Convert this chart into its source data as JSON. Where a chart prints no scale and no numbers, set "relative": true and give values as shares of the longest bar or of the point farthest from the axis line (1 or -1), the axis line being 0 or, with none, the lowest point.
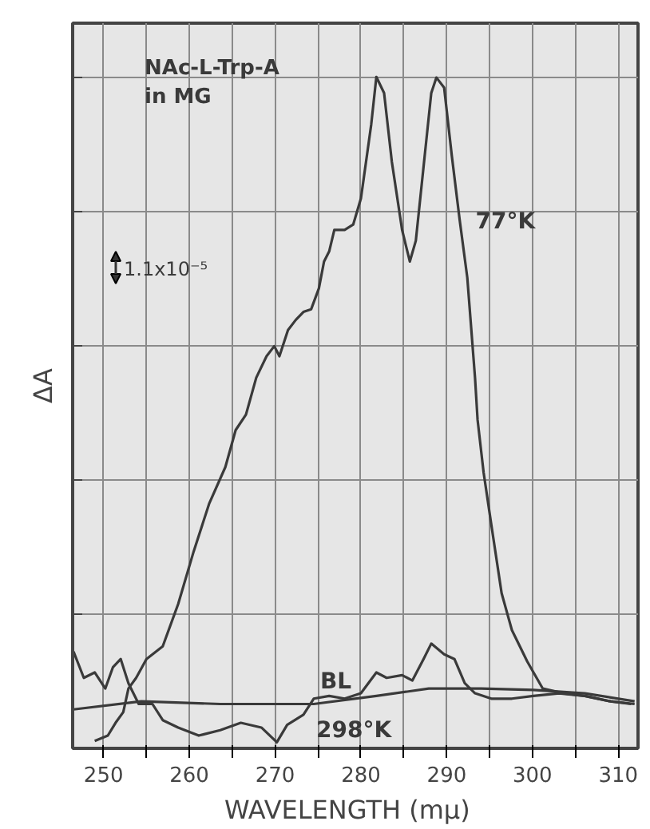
{
  "chart_data": {
    "type": "line",
    "relative": true,
    "xlabel": "WAVELENGTH   (mμ)",
    "ylabel": "ΔA",
    "xlim": [
      246.4,
      312.3
    ],
    "xticks": [
      250,
      {
        "value": 255,
        "label": null
      },
      260,
      {
        "value": 265,
        "label": null
      },
      270,
      {
        "value": 275,
        "label": null
      },
      280,
      {
        "value": 285,
        "label": null
      },
      290,
      {
        "value": 295,
        "label": null
      },
      300,
      {
        "value": 305,
        "label": null
      },
      310
    ],
    "tick_labels": "x",
    "grid": true,
    "line_style": "solid",
    "annotations": [
      "NAc-L-Trp-A\nin MG",
      "1.1x10⁻⁵"
    ],
    "series": [
      {
        "name": "77°K",
        "color": "#3a3a3a",
        "x": [
          248.97,
          250.5,
          251.4,
          252.3,
          252.9,
          253.8,
          255.0,
          256.9,
          258.7,
          260.5,
          262.3,
          264.2,
          265.4,
          266.6,
          267.8,
          269.0,
          269.9,
          270.5,
          271.5,
          272.4,
          273.3,
          274.2,
          275.1,
          275.7,
          276.3,
          276.9,
          278.1,
          279.1,
          280.0,
          281.2,
          281.8,
          282.7,
          283.6,
          284.8,
          285.7,
          286.4,
          287.3,
          288.2,
          288.8,
          289.7,
          290.6,
          291.5,
          292.4,
          293.3,
          293.6,
          294.3,
          295.2,
          296.4,
          297.6,
          299.4,
          301.2,
          303.6,
          306.1,
          309.1,
          311.9
        ],
        "values": [
          0.011,
          0.019,
          0.038,
          0.054,
          0.089,
          0.105,
          0.133,
          0.152,
          0.215,
          0.293,
          0.364,
          0.419,
          0.474,
          0.497,
          0.552,
          0.584,
          0.599,
          0.584,
          0.623,
          0.638,
          0.65,
          0.654,
          0.685,
          0.725,
          0.74,
          0.772,
          0.772,
          0.78,
          0.819,
          0.929,
          1.0,
          0.976,
          0.874,
          0.772,
          0.725,
          0.756,
          0.866,
          0.976,
          0.999,
          0.984,
          0.882,
          0.788,
          0.701,
          0.552,
          0.489,
          0.411,
          0.333,
          0.231,
          0.176,
          0.129,
          0.089,
          0.082,
          0.078,
          0.07,
          0.066
        ]
      },
      {
        "name": "BL",
        "color": "#3a3a3a",
        "x": [
          246.5,
          254.4,
          263.6,
          274.5,
          281.8,
          287.9,
          294.0,
          300.1,
          306.1,
          311.9
        ],
        "values": [
          0.058,
          0.07,
          0.066,
          0.066,
          0.078,
          0.089,
          0.089,
          0.087,
          0.082,
          0.07
        ]
      },
      {
        "name": "298°K",
        "color": "#3a3a3a",
        "x": [
          246.5,
          247.7,
          248.97,
          250.2,
          251.1,
          252.0,
          252.9,
          254.1,
          255.7,
          256.9,
          258.7,
          261.1,
          263.6,
          266.0,
          268.4,
          270.2,
          271.4,
          273.3,
          274.5,
          276.3,
          278.1,
          280.0,
          281.8,
          283.0,
          284.8,
          286.0,
          287.3,
          288.2,
          289.7,
          290.9,
          292.1,
          293.3,
          295.2,
          297.6,
          300.1,
          303.1,
          306.1,
          309.1,
          311.5
        ],
        "values": [
          0.144,
          0.105,
          0.113,
          0.089,
          0.121,
          0.133,
          0.097,
          0.066,
          0.066,
          0.042,
          0.031,
          0.019,
          0.027,
          0.038,
          0.031,
          0.009,
          0.035,
          0.05,
          0.074,
          0.078,
          0.074,
          0.082,
          0.113,
          0.105,
          0.109,
          0.101,
          0.133,
          0.156,
          0.14,
          0.133,
          0.097,
          0.082,
          0.074,
          0.074,
          0.078,
          0.082,
          0.078,
          0.07,
          0.066
        ]
      }
    ]
  }
}
